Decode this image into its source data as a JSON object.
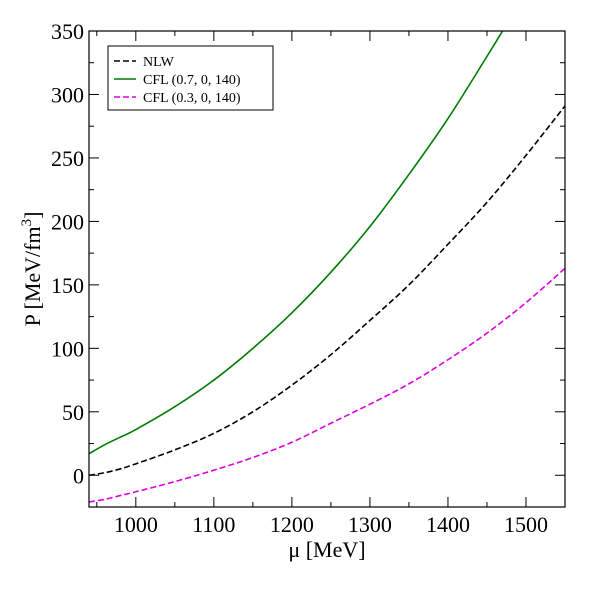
{
  "chart_data": {
    "type": "line",
    "xlabel": "μ [MeV]",
    "ylabel_main": "P [MeV/fm",
    "ylabel_sup": "3",
    "ylabel_end": "]",
    "xlim": [
      940,
      1550
    ],
    "ylim": [
      -25,
      350
    ],
    "x_ticks": [
      1000,
      1100,
      1200,
      1300,
      1400,
      1500
    ],
    "y_ticks": [
      0,
      50,
      100,
      150,
      200,
      250,
      300,
      350
    ],
    "grid": false,
    "legend_position": "top-left",
    "series": [
      {
        "name": "NLW",
        "color": "#000000",
        "dash": "dashed",
        "x": [
          940,
          960,
          980,
          1000,
          1050,
          1100,
          1150,
          1200,
          1250,
          1300,
          1350,
          1400,
          1450,
          1500,
          1550
        ],
        "y": [
          0,
          2,
          5,
          9,
          20,
          33,
          50,
          71,
          95,
          122,
          150,
          182,
          215,
          252,
          291
        ]
      },
      {
        "name": "CFL (0.7, 0, 140)",
        "color": "#007a00",
        "dash": "solid",
        "x": [
          940,
          960,
          980,
          1000,
          1050,
          1100,
          1150,
          1200,
          1250,
          1300,
          1350,
          1400,
          1450,
          1470
        ],
        "y": [
          17,
          24,
          30,
          36,
          54,
          75,
          100,
          128,
          160,
          196,
          237,
          281,
          330,
          350
        ]
      },
      {
        "name": "CFL (0.3, 0, 140)",
        "color": "#e000e0",
        "dash": "dashed",
        "x": [
          940,
          960,
          980,
          1000,
          1050,
          1100,
          1150,
          1200,
          1250,
          1300,
          1350,
          1400,
          1450,
          1500,
          1550
        ],
        "y": [
          -21,
          -19,
          -16,
          -13,
          -5,
          4,
          14,
          26,
          41,
          56,
          72,
          91,
          112,
          136,
          163
        ]
      }
    ]
  }
}
